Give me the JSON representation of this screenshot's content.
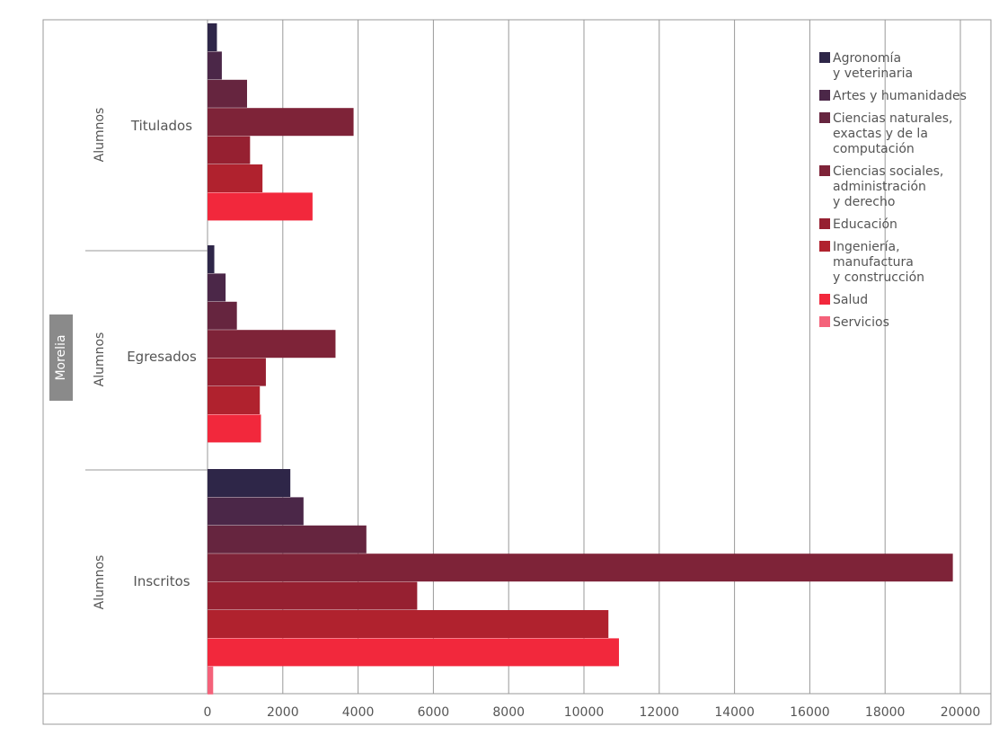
{
  "chart_data": {
    "type": "bar",
    "orientation": "horizontal",
    "region": "Morelia",
    "group_label": "Alumnos",
    "groups": [
      "Titulados",
      "Egresados",
      "Inscritos"
    ],
    "xlim": [
      0,
      20000
    ],
    "x_ticks": [
      0,
      2000,
      4000,
      6000,
      8000,
      10000,
      12000,
      14000,
      16000,
      18000,
      20000
    ],
    "grid": true,
    "legend_position": "top-right",
    "series": [
      {
        "name": "Agronomía\ny veterinaria",
        "color": "#2e2648",
        "values": [
          250,
          180,
          2200
        ]
      },
      {
        "name": "Artes y humanidades",
        "color": "#4b2748",
        "values": [
          380,
          480,
          2550
        ]
      },
      {
        "name": "Ciencias naturales,\nexactas y de la\ncomputación",
        "color": "#66253f",
        "values": [
          1050,
          780,
          4220
        ]
      },
      {
        "name": "Ciencias sociales,\nadministración\ny derecho",
        "color": "#7e2338",
        "values": [
          3880,
          3400,
          19800
        ]
      },
      {
        "name": "Educación",
        "color": "#962031",
        "values": [
          1130,
          1550,
          5570
        ]
      },
      {
        "name": "Ingeniería,\nmanufactura\ny construcción",
        "color": "#b0222e",
        "values": [
          1460,
          1390,
          10650
        ]
      },
      {
        "name": "Salud",
        "color": "#f2283c",
        "values": [
          2790,
          1420,
          10930
        ]
      },
      {
        "name": "Servicios",
        "color": "#f4627a",
        "values": [
          null,
          null,
          150
        ]
      }
    ]
  }
}
